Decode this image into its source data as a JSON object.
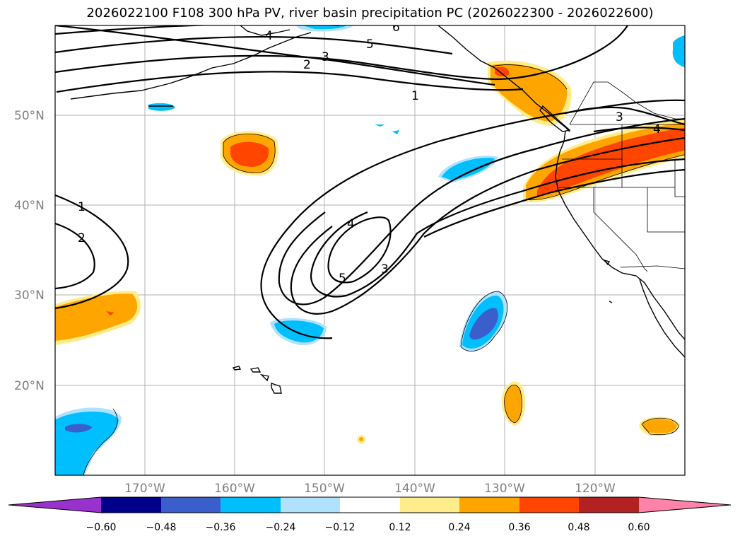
{
  "title": "2026022100 F108 300 hPa PV, river basin precipitation PC (2026022300 - 2026022600)",
  "latitude_labels": [
    "50°N",
    "40°N",
    "30°N",
    "20°N"
  ],
  "longitude_labels": [
    "170°W",
    "160°W",
    "150°W",
    "140°W",
    "130°W",
    "120°W"
  ],
  "pv_contour_labels": [
    "6",
    "5",
    "4",
    "3",
    "2",
    "1",
    "1",
    "2",
    "4",
    "5",
    "3",
    "3",
    "4"
  ],
  "colorbar": {
    "colors": [
      "#9932CC",
      "#00008B",
      "#3A5FCD",
      "#00BFFF",
      "#B0E2FF",
      "#FFFFFF",
      "#FFEC8B",
      "#FFA500",
      "#FF4500",
      "#B22222",
      "#FF82AB"
    ],
    "tick_labels": [
      "−0.60",
      "−0.48",
      "−0.36",
      "−0.24",
      "−0.12",
      "0.12",
      "0.24",
      "0.36",
      "0.48",
      "0.60"
    ]
  },
  "colors": {
    "grid": "#b0b0b0",
    "coast": "#000000"
  }
}
